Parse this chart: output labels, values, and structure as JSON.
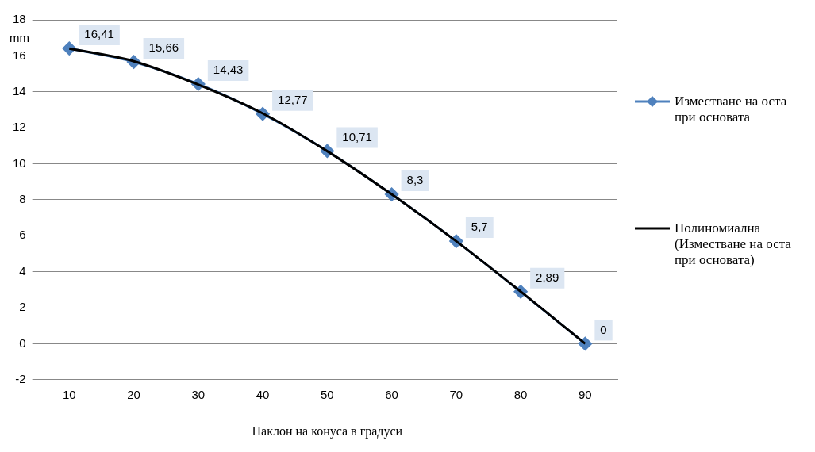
{
  "chart_data": {
    "type": "line",
    "xlabel": "Наклон на конуса в градуси",
    "ylabel": "mm",
    "categories": [
      "10",
      "20",
      "30",
      "40",
      "50",
      "60",
      "70",
      "80",
      "90"
    ],
    "series": [
      {
        "name": "Изместване на оста при основата",
        "color": "#4f81bd",
        "marker": "diamond",
        "values": [
          16.41,
          15.66,
          14.43,
          12.77,
          10.71,
          8.3,
          5.7,
          2.89,
          0
        ],
        "value_labels": [
          "16,41",
          "15,66",
          "14,43",
          "12,77",
          "10,71",
          "8,3",
          "5,7",
          "2,89",
          "0"
        ]
      },
      {
        "name": "Полиномиална (Изместване на оста при основата)",
        "color": "#000000",
        "marker": "none",
        "values": [
          16.4,
          15.7,
          14.4,
          12.8,
          10.7,
          8.3,
          5.7,
          2.9,
          0
        ]
      }
    ],
    "ylim": [
      -2,
      18
    ],
    "yticks": [
      -2,
      0,
      2,
      4,
      6,
      8,
      10,
      12,
      14,
      16,
      18
    ],
    "grid": "y",
    "legend": "right"
  }
}
